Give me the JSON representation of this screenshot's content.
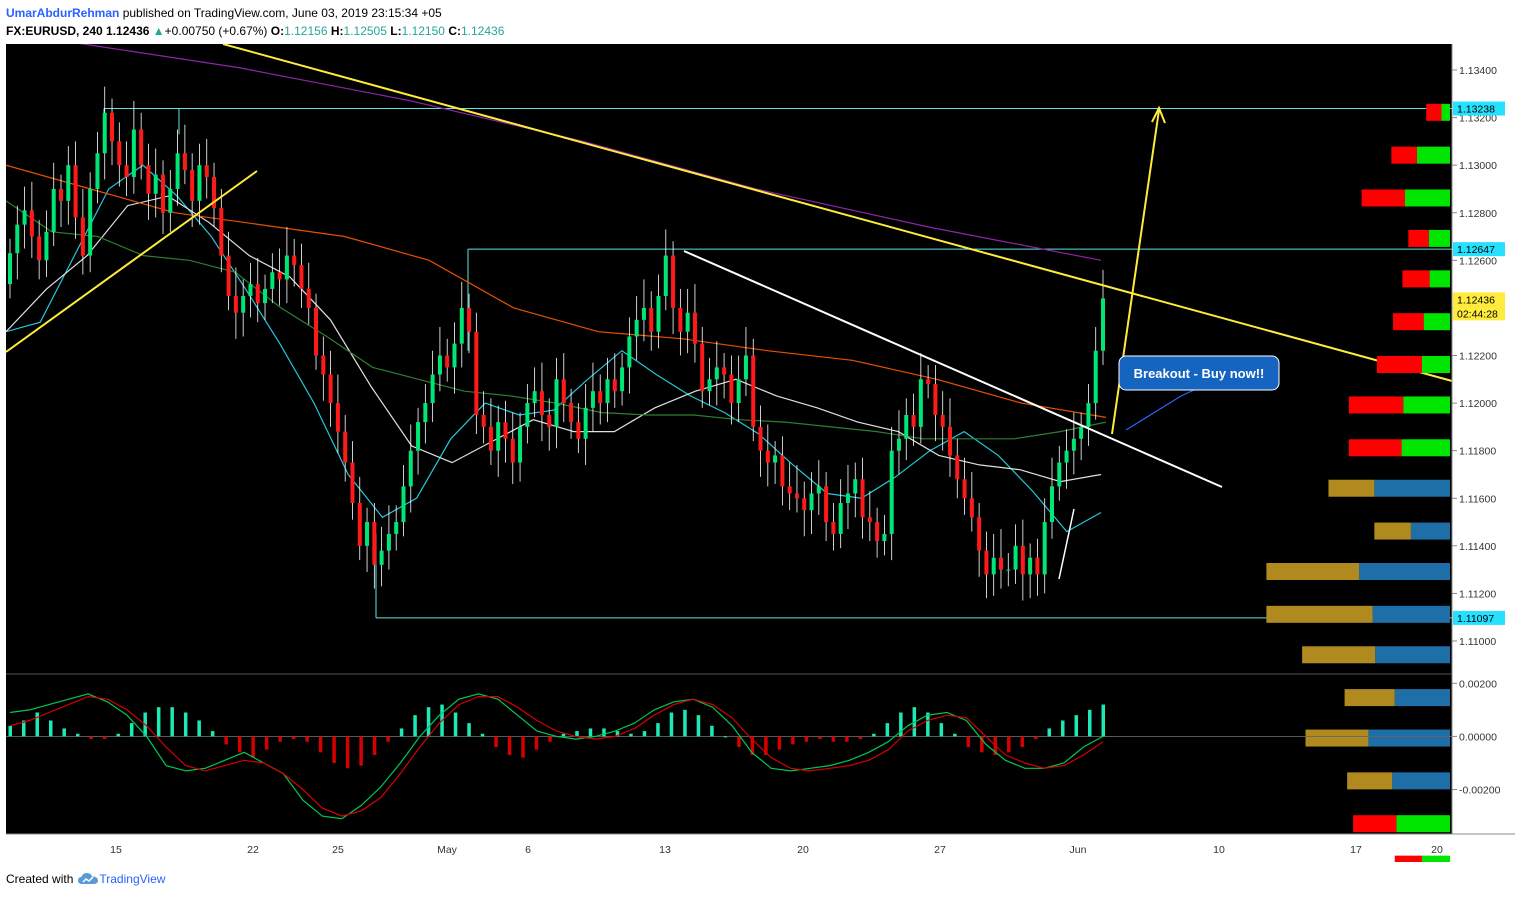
{
  "header": {
    "author": "UmarAbdurRehman",
    "published": "published on TradingView.com, June 03, 2019 23:15:34 +05",
    "symbol": "FX:EURUSD, 240",
    "price": "1.12436",
    "change_arrow": "▲",
    "change": "+0.00750 (+0.67%)",
    "o_label": "O:",
    "o_value": "1.12156",
    "h_label": "H:",
    "h_value": "1.12505",
    "l_label": "L:",
    "l_value": "1.12150",
    "c_label": "C:",
    "c_value": "1.12436"
  },
  "footer": {
    "created_with": "Created with",
    "brand": "TradingView",
    "logo_icon": "tradingview-cloud-icon"
  },
  "colors": {
    "background": "#000000",
    "up_candle": "#00e676",
    "down_candle": "#ff1a1a",
    "trendline_yellow": "#ffeb3b",
    "trendline_white": "#ffffff",
    "box_cyan": "#5fe3e3",
    "ma_cyan": "#26c6da",
    "ma_white": "#e0e0e0",
    "ma_green": "#2e7d32",
    "ma_orange": "#e65100",
    "ma_purple": "#8e24aa",
    "macd_line": "#00c853",
    "signal_line": "#d50000",
    "vp_up": "#00e600",
    "vp_down": "#ff0000",
    "vp_va_up": "#1e6fa8",
    "vp_va_down": "#b08a1e",
    "callout_bg": "#1565c0"
  },
  "annotation": {
    "text": "Breakout - Buy now!!"
  },
  "chart_data": {
    "type": "candlestick",
    "title": "FX:EURUSD, 240",
    "x_tick_labels": [
      "15",
      "22",
      "25",
      "May",
      "6",
      "13",
      "20",
      "27",
      "Jun",
      "10",
      "17",
      "20"
    ],
    "y_tick_labels": [
      "1.13400",
      "1.13200",
      "1.13000",
      "1.12800",
      "1.12600",
      "1.12400",
      "1.12200",
      "1.12000",
      "1.11800",
      "1.11600",
      "1.11400",
      "1.11200",
      "1.11000"
    ],
    "ylim": [
      1.1084,
      1.1356
    ],
    "price_badges": [
      {
        "value": 1.13238,
        "label": "1.13238",
        "style": "cyan"
      },
      {
        "value": 1.12647,
        "label": "1.12647",
        "style": "cyan"
      },
      {
        "value": 1.12436,
        "label": "1.12436",
        "style": "yellow"
      },
      {
        "value": 1.11097,
        "label": "1.11097",
        "style": "cyan"
      }
    ],
    "countdown": "02:44:28",
    "rectangles": [
      {
        "name": "range-top",
        "y_top": 1.13238,
        "y_bottom": null
      },
      {
        "name": "range-main",
        "y_top": 1.12647,
        "y_bottom": 1.11097
      }
    ],
    "candles_close": [
      1.1263,
      1.1275,
      1.1281,
      1.127,
      1.126,
      1.1272,
      1.129,
      1.1285,
      1.13,
      1.1278,
      1.1262,
      1.129,
      1.1305,
      1.1322,
      1.131,
      1.13,
      1.1295,
      1.1315,
      1.13,
      1.1288,
      1.1296,
      1.128,
      1.129,
      1.1305,
      1.1298,
      1.1285,
      1.13,
      1.1295,
      1.1282,
      1.1262,
      1.1245,
      1.1238,
      1.1245,
      1.125,
      1.1242,
      1.1248,
      1.1255,
      1.1252,
      1.1262,
      1.1258,
      1.1248,
      1.124,
      1.122,
      1.1212,
      1.12,
      1.1188,
      1.1175,
      1.1158,
      1.114,
      1.115,
      1.1132,
      1.1138,
      1.1145,
      1.115,
      1.1165,
      1.118,
      1.1192,
      1.12,
      1.1212,
      1.122,
      1.1215,
      1.1225,
      1.124,
      1.123,
      1.1195,
      1.119,
      1.118,
      1.1192,
      1.1185,
      1.1175,
      1.119,
      1.12,
      1.1205,
      1.1195,
      1.119,
      1.121,
      1.12,
      1.1192,
      1.1185,
      1.1198,
      1.1205,
      1.12,
      1.121,
      1.1205,
      1.1215,
      1.1228,
      1.1235,
      1.124,
      1.123,
      1.1245,
      1.1262,
      1.124,
      1.123,
      1.1238,
      1.1225,
      1.1205,
      1.121,
      1.1215,
      1.1212,
      1.12,
      1.121,
      1.122,
      1.119,
      1.118,
      1.1175,
      1.1178,
      1.1165,
      1.1162,
      1.116,
      1.1155,
      1.1162,
      1.1165,
      1.115,
      1.1145,
      1.1158,
      1.1162,
      1.1168,
      1.1152,
      1.115,
      1.1142,
      1.1145,
      1.118,
      1.1185,
      1.1195,
      1.119,
      1.121,
      1.1208,
      1.1195,
      1.119,
      1.1178,
      1.1168,
      1.116,
      1.1152,
      1.1138,
      1.1128,
      1.1135,
      1.113,
      1.113,
      1.114,
      1.1128,
      1.1135,
      1.1128,
      1.115,
      1.1165,
      1.1175,
      1.118,
      1.1185,
      1.119,
      1.12,
      1.1222,
      1.1244
    ],
    "ma_series": [
      {
        "color": "cyan",
        "values": [
          1.123,
          1.1234,
          1.1262,
          1.129,
          1.13,
          1.1287,
          1.127,
          1.1248,
          1.1225,
          1.12,
          1.117,
          1.1152,
          1.116,
          1.1185,
          1.12,
          1.1195,
          1.1197,
          1.121,
          1.1222,
          1.1212,
          1.1203,
          1.1196,
          1.1187,
          1.1174,
          1.1162,
          1.116,
          1.1169,
          1.118,
          1.1188,
          1.1178,
          1.1163,
          1.1146,
          1.1154
        ]
      },
      {
        "color": "white",
        "values": [
          1.123,
          1.1248,
          1.1262,
          1.1283,
          1.1287,
          1.1276,
          1.1262,
          1.1253,
          1.1235,
          1.1207,
          1.1182,
          1.1175,
          1.1184,
          1.1193,
          1.1188,
          1.1188,
          1.1198,
          1.1205,
          1.121,
          1.1203,
          1.1198,
          1.1192,
          1.1188,
          1.1178,
          1.1174,
          1.1172,
          1.1167,
          1.117
        ]
      },
      {
        "color": "green",
        "values": [
          1.1285,
          1.1272,
          1.127,
          1.1262,
          1.126,
          1.1255,
          1.124,
          1.1228,
          1.1215,
          1.121,
          1.1205,
          1.1203,
          1.12,
          1.1196,
          1.1195,
          1.1195,
          1.1193,
          1.1192,
          1.119,
          1.1188,
          1.1185,
          1.1185,
          1.1185,
          1.1188,
          1.1192
        ]
      },
      {
        "color": "orange",
        "values": [
          1.13,
          1.129,
          1.128,
          1.1275,
          1.127,
          1.126,
          1.124,
          1.123,
          1.1227,
          1.1222,
          1.1218,
          1.121,
          1.12,
          1.1194
        ]
      },
      {
        "color": "purple",
        "values": [
          1.1352,
          1.1341,
          1.1327,
          1.131,
          1.129,
          1.1274,
          1.126
        ]
      }
    ],
    "trendlines": [
      {
        "name": "yellow-downtrend",
        "from": [
          1.135,
          "Apr 11"
        ],
        "to": [
          1.121,
          "Jun 20"
        ]
      },
      {
        "name": "yellow-uptrend",
        "from": [
          1.1218,
          "Apr 9"
        ],
        "to": [
          1.13,
          "Apr 20"
        ]
      },
      {
        "name": "white-downtrend",
        "from": [
          1.1262,
          "May 13"
        ],
        "to": [
          1.1165,
          "Jun 10"
        ]
      },
      {
        "name": "yellow-target-arrow",
        "from": [
          1.1198,
          "Jun 1"
        ],
        "to": [
          1.1325,
          "Jun 5"
        ]
      }
    ],
    "volume_profile": [
      {
        "price": 1.1322,
        "up": 10,
        "down": 18,
        "value_area": false
      },
      {
        "price": 1.1304,
        "up": 39,
        "down": 30,
        "value_area": false
      },
      {
        "price": 1.1286,
        "up": 53,
        "down": 51,
        "value_area": false
      },
      {
        "price": 1.1269,
        "up": 25,
        "down": 24,
        "value_area": false
      },
      {
        "price": 1.1252,
        "up": 24,
        "down": 32,
        "value_area": false
      },
      {
        "price": 1.1234,
        "up": 31,
        "down": 36,
        "value_area": false
      },
      {
        "price": 1.1216,
        "up": 33,
        "down": 53,
        "value_area": false
      },
      {
        "price": 1.1199,
        "up": 55,
        "down": 64,
        "value_area": false
      },
      {
        "price": 1.1181,
        "up": 57,
        "down": 62,
        "value_area": false
      },
      {
        "price": 1.1164,
        "up": 89,
        "down": 54,
        "value_area": true
      },
      {
        "price": 1.1146,
        "up": 46,
        "down": 43,
        "value_area": true
      },
      {
        "price": 1.1129,
        "up": 107,
        "down": 109,
        "value_area": true
      },
      {
        "price": 1.1111,
        "up": 91,
        "down": 125,
        "value_area": true
      },
      {
        "price": 1.1094,
        "up": 88,
        "down": 86,
        "value_area": true
      },
      {
        "price": 1.1076,
        "up": 65,
        "down": 59,
        "value_area": true
      },
      {
        "price": 1.1059,
        "up": 96,
        "down": 74,
        "value_area": true
      },
      {
        "price": 1.1041,
        "up": 68,
        "down": 53,
        "value_area": true
      },
      {
        "price": 1.1023,
        "up": 63,
        "down": 51,
        "value_area": false
      },
      {
        "price": 1.1006,
        "up": 33,
        "down": 32,
        "value_area": false
      },
      {
        "price": 1.0988,
        "up": 7,
        "down": 5,
        "value_area": false
      }
    ],
    "macd": {
      "y_tick_labels": [
        "0.00200",
        "0.00000",
        "-0.00200"
      ],
      "ylim": [
        -0.0036,
        0.0022
      ],
      "histogram": [
        0.0004,
        0.0006,
        0.0009,
        0.0006,
        0.0003,
        0.0001,
        -0.0001,
        -0.0001,
        0.0001,
        0.0005,
        0.0009,
        0.0011,
        0.0011,
        0.0009,
        0.0006,
        0.0002,
        -0.0003,
        -0.0006,
        -0.0008,
        -0.0005,
        -0.0002,
        -0.0001,
        -0.0002,
        -0.0006,
        -0.001,
        -0.0012,
        -0.0011,
        -0.0007,
        -0.0002,
        0.0003,
        0.0008,
        0.0011,
        0.0012,
        0.0009,
        0.0005,
        0.0001,
        -0.0004,
        -0.0007,
        -0.0008,
        -0.0005,
        -0.0002,
        0.0001,
        0.0002,
        0.0003,
        0.0003,
        0.0002,
        0.0001,
        0.0002,
        0.0005,
        0.0009,
        0.001,
        0.0008,
        0.0004,
        0.0,
        -0.0004,
        -0.0007,
        -0.0007,
        -0.0005,
        -0.0003,
        -0.0002,
        -0.0001,
        -0.0002,
        -0.0002,
        -0.0001,
        0.0001,
        0.0005,
        0.0009,
        0.0011,
        0.0009,
        0.0005,
        0.0001,
        -0.0004,
        -0.0006,
        -0.0007,
        -0.0006,
        -0.0004,
        -0.0001,
        0.0003,
        0.0006,
        0.0008,
        0.001,
        0.0012
      ],
      "macd_line": [
        0.0009,
        0.001,
        0.0012,
        0.0014,
        0.0016,
        0.0013,
        0.0008,
        0.0,
        -0.0011,
        -0.0013,
        -0.0012,
        -0.0009,
        -0.0006,
        -0.001,
        -0.0014,
        -0.0024,
        -0.003,
        -0.0031,
        -0.0026,
        -0.0019,
        -0.001,
        0.0,
        0.0008,
        0.0014,
        0.0016,
        0.0014,
        0.0008,
        0.0002,
        0.0,
        -0.0001,
        0.0,
        0.0002,
        0.0005,
        0.001,
        0.0013,
        0.0014,
        0.0011,
        0.0004,
        -0.0006,
        -0.0012,
        -0.0013,
        -0.0012,
        -0.0011,
        -0.0009,
        -0.0006,
        -0.0002,
        0.0004,
        0.0008,
        0.0009,
        0.0006,
        -0.0003,
        -0.0009,
        -0.0012,
        -0.0012,
        -0.001,
        -0.0004,
        0.0
      ],
      "signal_line": [
        0.0004,
        0.0006,
        0.0009,
        0.0012,
        0.0015,
        0.0014,
        0.001,
        0.0004,
        -0.0004,
        -0.0011,
        -0.0013,
        -0.0011,
        -0.0009,
        -0.001,
        -0.0014,
        -0.002,
        -0.0027,
        -0.003,
        -0.0028,
        -0.0023,
        -0.0014,
        -0.0004,
        0.0005,
        0.0012,
        0.0015,
        0.0015,
        0.0011,
        0.0006,
        0.0002,
        0.0,
        -0.0001,
        0.0,
        0.0003,
        0.0008,
        0.0012,
        0.0014,
        0.0012,
        0.0007,
        -0.0001,
        -0.0008,
        -0.0012,
        -0.0013,
        -0.0012,
        -0.0011,
        -0.0009,
        -0.0005,
        0.0002,
        0.0006,
        0.0008,
        0.0007,
        0.0,
        -0.0007,
        -0.001,
        -0.0012,
        -0.0011,
        -0.0007,
        -0.0002
      ]
    }
  }
}
